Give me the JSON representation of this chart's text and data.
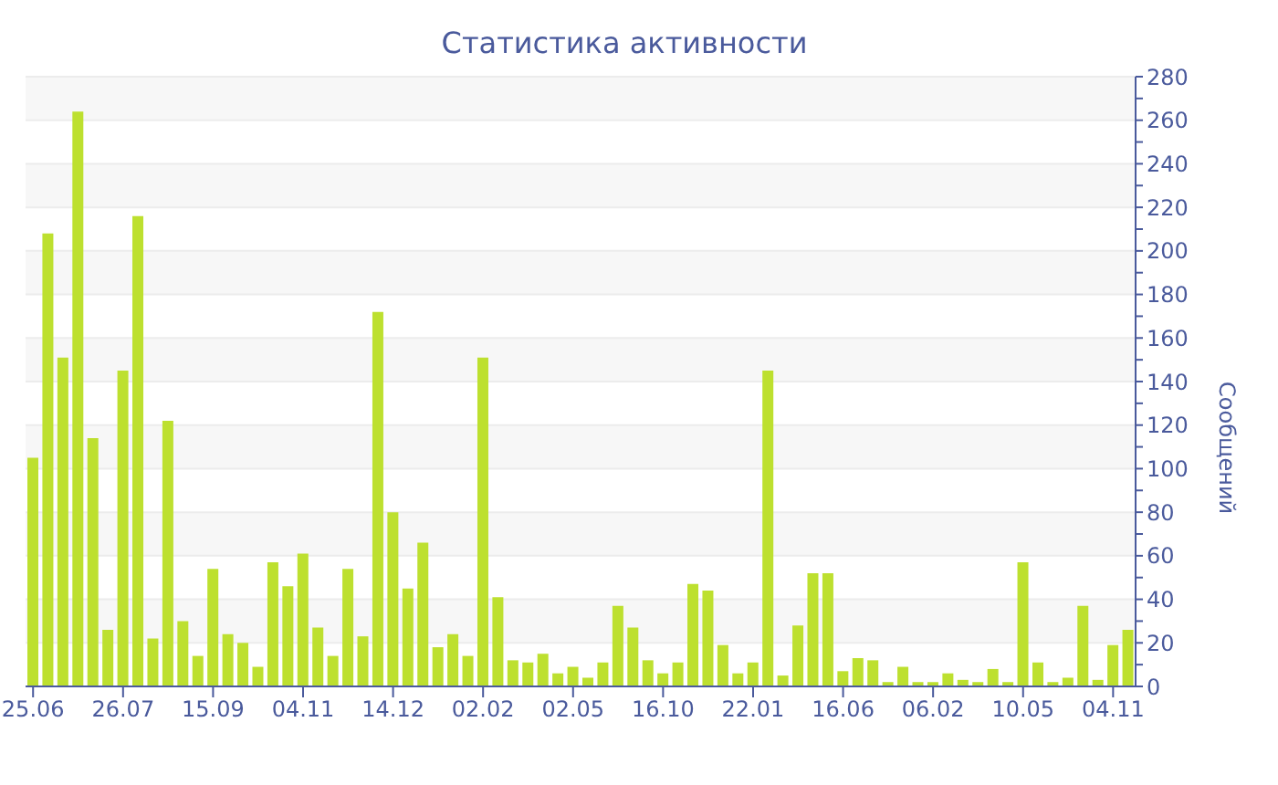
{
  "chart_data": {
    "type": "bar",
    "title": "Статистика активности",
    "ylabel": "Сообщений",
    "categories": [
      "25.06",
      null,
      null,
      null,
      null,
      null,
      "26.07",
      null,
      null,
      null,
      null,
      null,
      "15.09",
      null,
      null,
      null,
      null,
      null,
      "04.11",
      null,
      null,
      null,
      null,
      null,
      "14.12",
      null,
      null,
      null,
      null,
      null,
      "02.02",
      null,
      null,
      null,
      null,
      null,
      "02.05",
      null,
      null,
      null,
      null,
      null,
      "16.10",
      null,
      null,
      null,
      null,
      null,
      "22.01",
      null,
      null,
      null,
      null,
      null,
      "16.06",
      null,
      null,
      null,
      null,
      null,
      "06.02",
      null,
      null,
      null,
      null,
      null,
      "10.05",
      null,
      null,
      null,
      null,
      null,
      "04.11",
      null
    ],
    "values": [
      105,
      208,
      151,
      264,
      114,
      26,
      145,
      216,
      22,
      122,
      30,
      14,
      54,
      24,
      20,
      9,
      57,
      46,
      61,
      27,
      14,
      54,
      23,
      172,
      80,
      45,
      66,
      18,
      24,
      14,
      151,
      41,
      12,
      11,
      15,
      6,
      9,
      4,
      11,
      37,
      27,
      12,
      6,
      11,
      47,
      44,
      19,
      6,
      11,
      145,
      5,
      28,
      52,
      52,
      7,
      13,
      12,
      2,
      9,
      2,
      2,
      6,
      3,
      2,
      8,
      2,
      57,
      11,
      2,
      4,
      37,
      3,
      19,
      26
    ],
    "color": "#bde02f",
    "ylim": [
      0,
      280
    ],
    "yticks": [
      0,
      {
        "value": 10,
        "label": null
      },
      20,
      {
        "value": 30,
        "label": null
      },
      40,
      {
        "value": 50,
        "label": null
      },
      60,
      {
        "value": 70,
        "label": null
      },
      80,
      {
        "value": 90,
        "label": null
      },
      100,
      {
        "value": 110,
        "label": null
      },
      120,
      {
        "value": 130,
        "label": null
      },
      140,
      {
        "value": 150,
        "label": null
      },
      160,
      {
        "value": 170,
        "label": null
      },
      180,
      {
        "value": 190,
        "label": null
      },
      200,
      {
        "value": 210,
        "label": null
      },
      220,
      {
        "value": 230,
        "label": null
      },
      240,
      {
        "value": 250,
        "label": null
      },
      260,
      {
        "value": 270,
        "label": null
      },
      280
    ],
    "grid": "y"
  }
}
